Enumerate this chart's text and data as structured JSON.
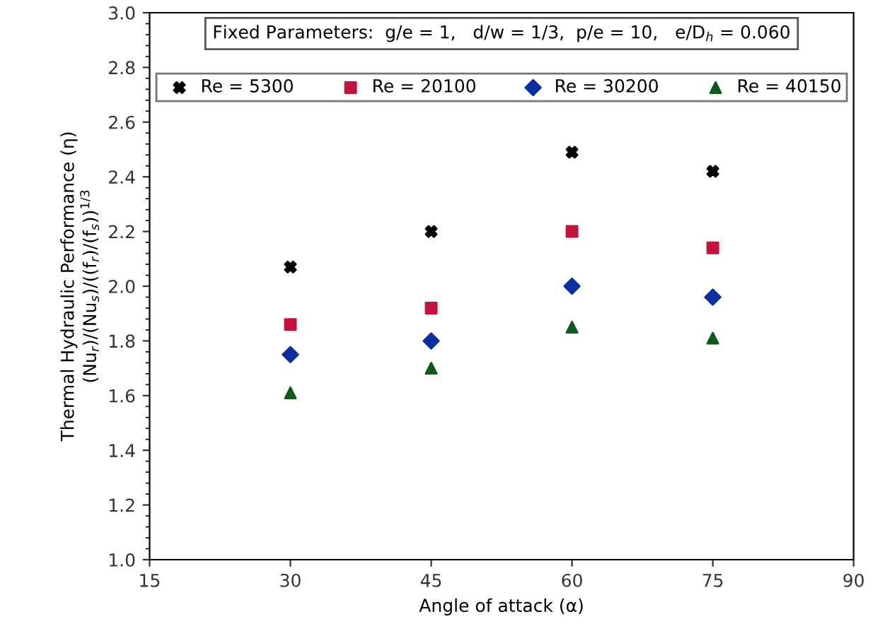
{
  "chart_data": {
    "type": "scatter",
    "xlabel": "Angle of attack (α)",
    "ylabel": "Thermal Hydraulic Performance (η)\n(Nu$_{r}$)/(Nu$_{s}$)/((f$_{r}$)/(f$_{s}$))$^{1/3}$",
    "annotations": [
      "Fixed Parameters:  g/e = 1,   d/w = 1/3,  p/e = 10,   e/D$_{h}$ = 0.060"
    ],
    "x": [
      30,
      45,
      60,
      75
    ],
    "series": [
      {
        "name": "Re = 5300",
        "color": "#000000",
        "marker": "cross",
        "values": [
          2.07,
          2.2,
          2.49,
          2.42
        ]
      },
      {
        "name": "Re = 20100",
        "color": "#c0143c",
        "marker": "square",
        "values": [
          1.86,
          1.92,
          2.2,
          2.14
        ]
      },
      {
        "name": "Re = 30200",
        "color": "#0a2f9e",
        "marker": "diamond",
        "values": [
          1.75,
          1.8,
          2.0,
          1.96
        ]
      },
      {
        "name": "Re = 40150",
        "color": "#0e5a1c",
        "marker": "triangle",
        "values": [
          1.61,
          1.7,
          1.85,
          1.81
        ]
      }
    ],
    "xlim": [
      15,
      90
    ],
    "xticks": [
      15,
      30,
      45,
      60,
      75,
      90
    ],
    "ylim": [
      1.0,
      3.0
    ],
    "yticks": [
      {
        "value": 1.0,
        "label": "1.0"
      },
      1.2,
      1.4,
      1.6,
      1.8,
      {
        "value": 2.0,
        "label": "2.0"
      },
      2.2,
      2.4,
      2.6,
      2.8,
      {
        "value": 3.0,
        "label": "3.0"
      }
    ],
    "grid": false,
    "legend": "top"
  }
}
